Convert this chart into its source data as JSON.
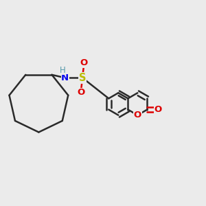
{
  "background_color": "#ebebeb",
  "bond_color": "#2a2a2a",
  "N_color": "#0000ee",
  "H_color": "#777777",
  "S_color": "#bbbb00",
  "O_color": "#dd0000",
  "lw": 1.8,
  "doff": 0.011,
  "figsize": [
    3.0,
    3.0
  ],
  "dpi": 100,
  "xlim": [
    0,
    1
  ],
  "ylim": [
    0,
    1
  ]
}
